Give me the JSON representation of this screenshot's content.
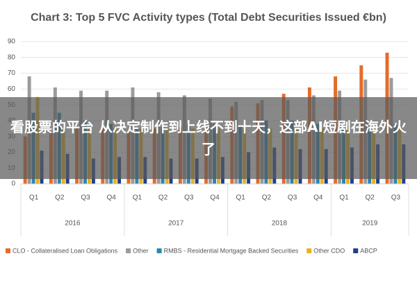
{
  "chart_data": {
    "type": "bar",
    "title": "Chart 3: Top 5 FVC Activity types (Total Debt Securities Issued €bn)",
    "categories": [
      "Q1",
      "Q2",
      "Q3",
      "Q4",
      "Q1",
      "Q2",
      "Q3",
      "Q4",
      "Q1",
      "Q2",
      "Q3",
      "Q4",
      "Q1",
      "Q2",
      "Q3"
    ],
    "groups": [
      {
        "name": "2016",
        "span": 4
      },
      {
        "name": "2017",
        "span": 4
      },
      {
        "name": "2018",
        "span": 4
      },
      {
        "name": "2019",
        "span": 3
      }
    ],
    "series": [
      {
        "name": "CLO - Collateralised Loan Obligations",
        "color": "#e46c2a",
        "values": [
          30,
          32,
          35,
          35,
          33,
          35,
          36,
          37,
          49,
          51,
          57,
          61,
          68,
          75,
          83
        ]
      },
      {
        "name": "Other",
        "color": "#9b9b9b",
        "values": [
          68,
          61,
          59,
          59,
          61,
          58,
          56,
          54,
          52,
          53,
          53,
          56,
          59,
          66,
          67
        ]
      },
      {
        "name": "RMBS - Residential Mortgage Backed Securities",
        "color": "#2a86b4",
        "values": [
          45,
          45,
          40,
          38,
          35,
          36,
          38,
          38,
          37,
          40,
          40,
          38,
          35,
          38,
          38
        ]
      },
      {
        "name": "Other CDO",
        "color": "#e8b21e",
        "values": [
          55,
          36,
          35,
          35,
          35,
          35,
          35,
          35,
          35,
          35,
          35,
          35,
          37,
          35,
          35
        ]
      },
      {
        "name": "ABCP",
        "color": "#203f8c",
        "values": [
          21,
          19,
          16,
          17,
          17,
          16,
          16,
          17,
          20,
          23,
          22,
          22,
          23,
          25,
          25
        ]
      }
    ],
    "ylim": [
      0,
      90
    ],
    "yticks": [
      0,
      10,
      20,
      30,
      40,
      50,
      60,
      70,
      80,
      90
    ],
    "grid": true
  },
  "overlay": {
    "text": "看股票的平台 从决定制作到上线不到十天，这部AI短剧在海外火了"
  }
}
